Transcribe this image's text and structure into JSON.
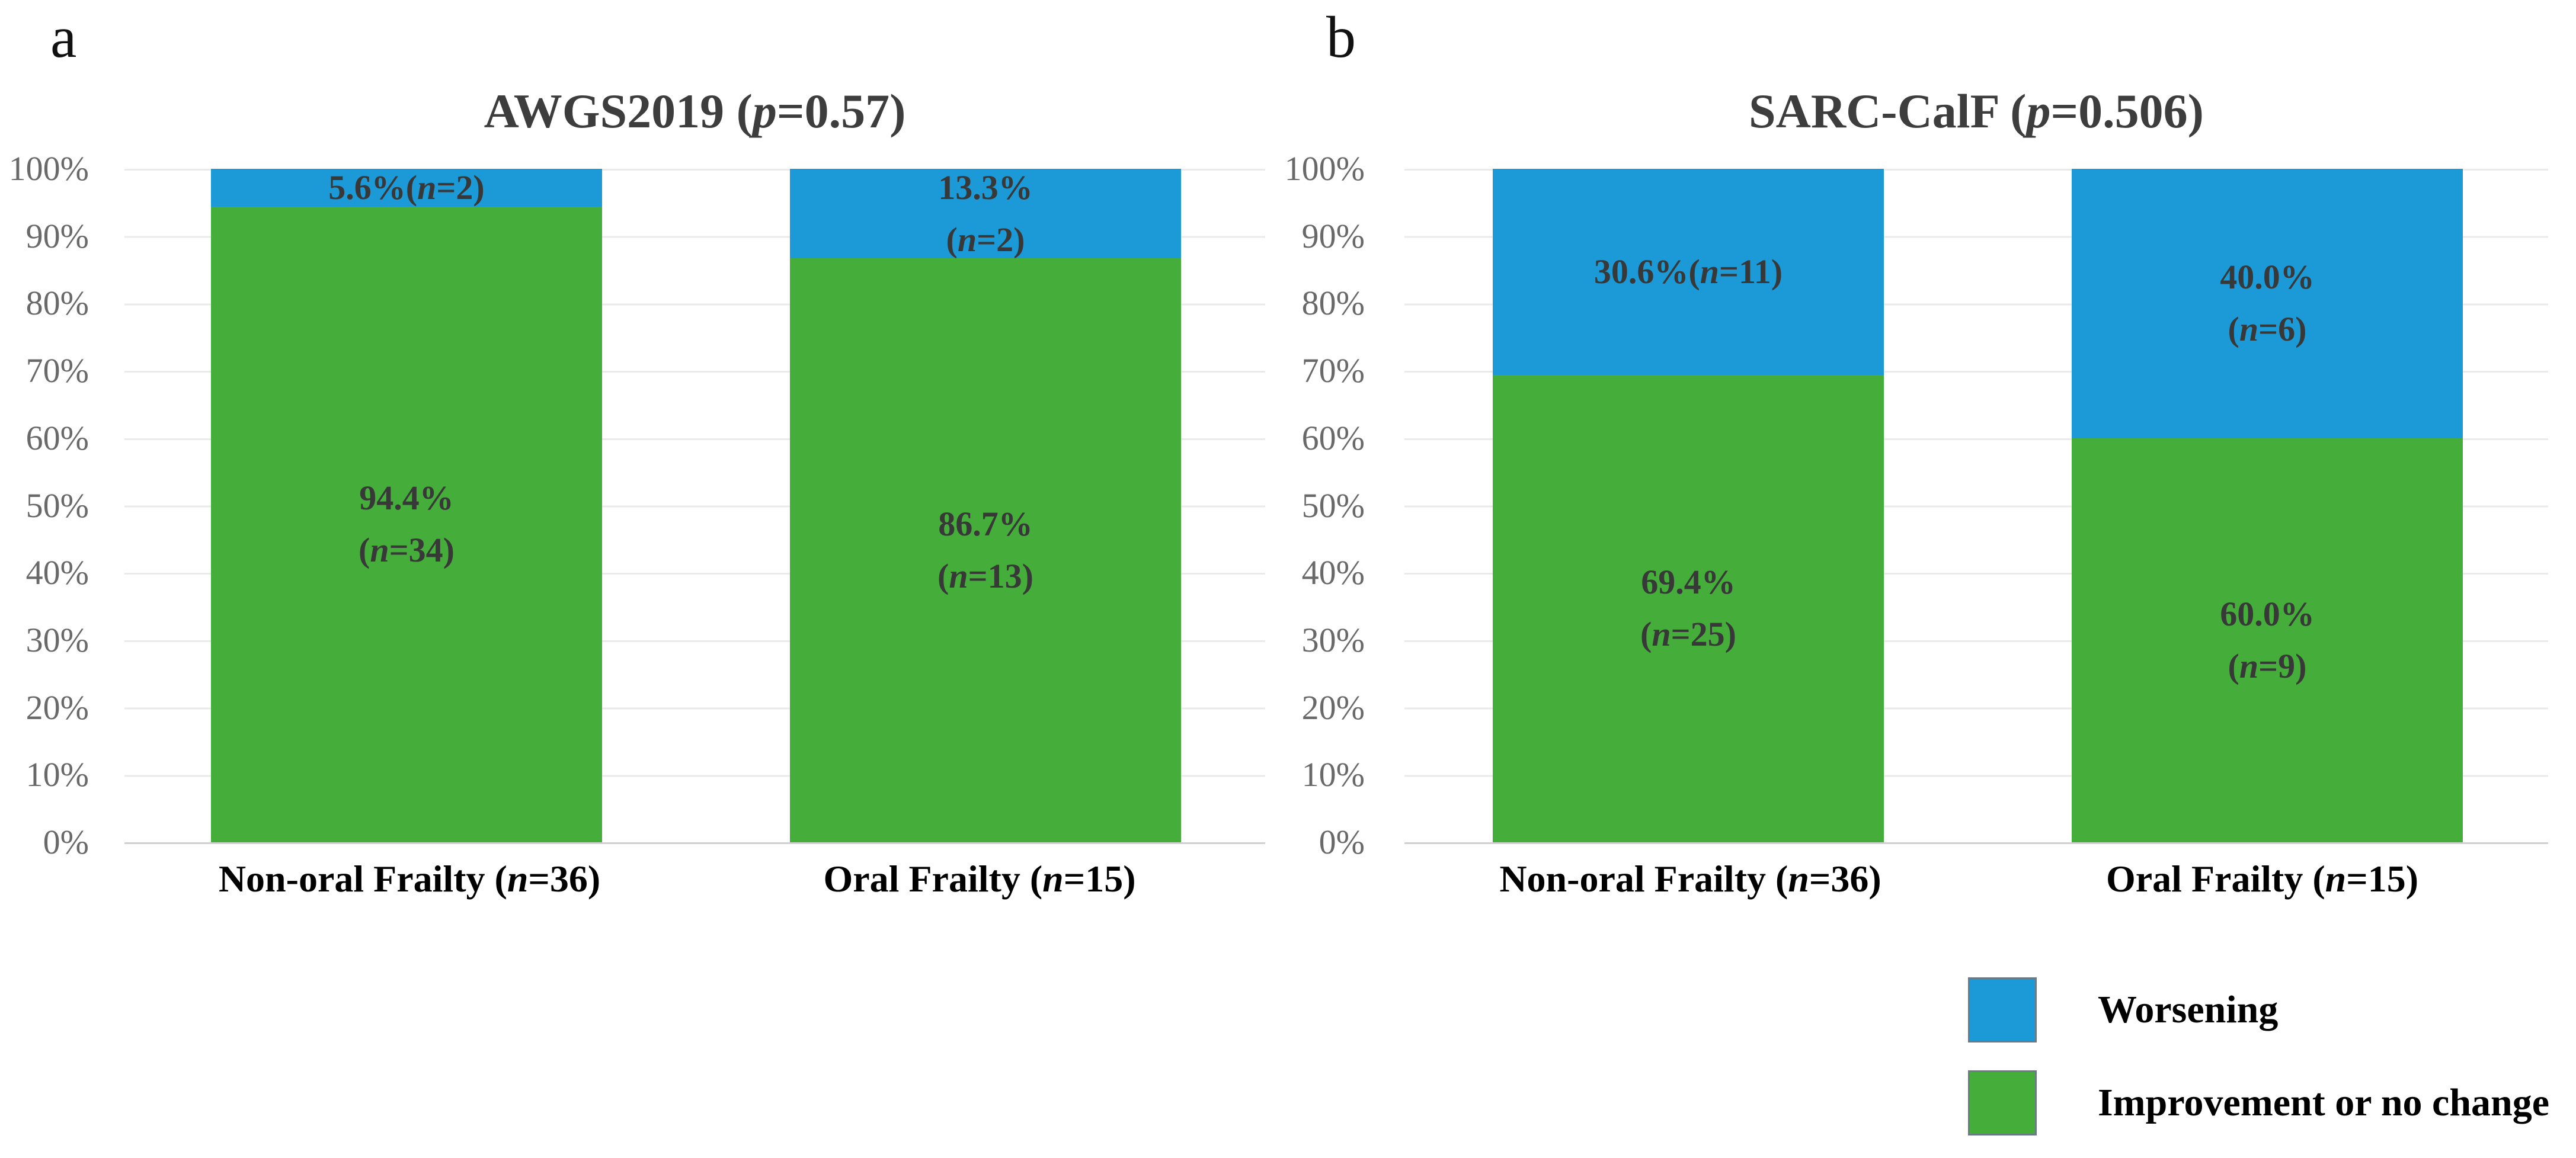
{
  "figure": {
    "panel_a_letter": "a",
    "panel_b_letter": "b"
  },
  "yticks": [
    "100%",
    "90%",
    "80%",
    "70%",
    "60%",
    "50%",
    "40%",
    "30%",
    "20%",
    "10%",
    "0%"
  ],
  "colors": {
    "worsening": "#1b9ad7",
    "improvement": "#45ad3a",
    "gridline": "#eaeaea",
    "axis_line": "#d0d0d0",
    "data_label_text": "#383838",
    "tick_text": "#696969",
    "title_text": "#3d3d3d"
  },
  "panels": [
    {
      "id": "a",
      "title": {
        "pre": "AWGS2019 (",
        "it": "p",
        "post": "=0.57)"
      },
      "bars": [
        {
          "category": {
            "pre": "Non-oral Frailty (",
            "it": "n",
            "post": "=36)"
          },
          "segments": [
            {
              "name": "Worsening",
              "value": 5.6,
              "label": [
                {
                  "pre": "5.6%(",
                  "it": "n",
                  "post": "=2)"
                }
              ]
            },
            {
              "name": "Improvement or no change",
              "value": 94.4,
              "label": [
                {
                  "pre": "94.4%"
                },
                {
                  "pre": "(",
                  "it": "n",
                  "post": "=34)"
                }
              ]
            }
          ]
        },
        {
          "category": {
            "pre": "Oral Frailty (",
            "it": "n",
            "post": "=15)"
          },
          "segments": [
            {
              "name": "Worsening",
              "value": 13.3,
              "label": [
                {
                  "pre": "13.3%"
                },
                {
                  "pre": "(",
                  "it": "n",
                  "post": "=2)"
                }
              ]
            },
            {
              "name": "Improvement or no change",
              "value": 86.7,
              "label": [
                {
                  "pre": "86.7%"
                },
                {
                  "pre": "(",
                  "it": "n",
                  "post": "=13)"
                }
              ]
            }
          ]
        }
      ]
    },
    {
      "id": "b",
      "title": {
        "pre": "SARC-CalF (",
        "it": "p",
        "post": "=0.506)"
      },
      "bars": [
        {
          "category": {
            "pre": "Non-oral Frailty (",
            "it": "n",
            "post": "=36)"
          },
          "segments": [
            {
              "name": "Worsening",
              "value": 30.6,
              "label": [
                {
                  "pre": "30.6%(",
                  "it": "n",
                  "post": "=11)"
                }
              ]
            },
            {
              "name": "Improvement or no change",
              "value": 69.4,
              "label": [
                {
                  "pre": "69.4%"
                },
                {
                  "pre": "(",
                  "it": "n",
                  "post": "=25)"
                }
              ]
            }
          ]
        },
        {
          "category": {
            "pre": "Oral Frailty (",
            "it": "n",
            "post": "=15)"
          },
          "segments": [
            {
              "name": "Worsening",
              "value": 40.0,
              "label": [
                {
                  "pre": "40.0%"
                },
                {
                  "pre": "(",
                  "it": "n",
                  "post": "=6)"
                }
              ]
            },
            {
              "name": "Improvement or no change",
              "value": 60.0,
              "label": [
                {
                  "pre": "60.0%"
                },
                {
                  "pre": "(",
                  "it": "n",
                  "post": "=9)"
                }
              ]
            }
          ]
        }
      ]
    }
  ],
  "legend": {
    "position": "bottom-right",
    "items": [
      {
        "label": "Worsening",
        "color": "#1b9ad7"
      },
      {
        "label": "Improvement or no change",
        "color": "#45ad3a"
      }
    ]
  },
  "chart_data": [
    {
      "type": "bar",
      "stacked": true,
      "title": "AWGS2019 (p=0.57)",
      "p_value": 0.57,
      "categories": [
        "Non-oral Frailty (n=36)",
        "Oral Frailty (n=15)"
      ],
      "series": [
        {
          "name": "Worsening",
          "values": [
            5.6,
            13.3
          ],
          "counts": [
            2,
            2
          ]
        },
        {
          "name": "Improvement or no change",
          "values": [
            94.4,
            86.7
          ],
          "counts": [
            34,
            13
          ]
        }
      ],
      "ylabel": "",
      "ylim": [
        0,
        100
      ],
      "ytick_labels": [
        "0%",
        "10%",
        "20%",
        "30%",
        "40%",
        "50%",
        "60%",
        "70%",
        "80%",
        "90%",
        "100%"
      ],
      "grid": true,
      "legend_position": "none"
    },
    {
      "type": "bar",
      "stacked": true,
      "title": "SARC-CalF (p=0.506)",
      "p_value": 0.506,
      "categories": [
        "Non-oral Frailty (n=36)",
        "Oral Frailty (n=15)"
      ],
      "series": [
        {
          "name": "Worsening",
          "values": [
            30.6,
            40.0
          ],
          "counts": [
            11,
            6
          ]
        },
        {
          "name": "Improvement or no change",
          "values": [
            69.4,
            60.0
          ],
          "counts": [
            25,
            9
          ]
        }
      ],
      "ylabel": "",
      "ylim": [
        0,
        100
      ],
      "ytick_labels": [
        "0%",
        "10%",
        "20%",
        "30%",
        "40%",
        "50%",
        "60%",
        "70%",
        "80%",
        "90%",
        "100%"
      ],
      "grid": true,
      "legend_position": "bottom-right"
    }
  ]
}
